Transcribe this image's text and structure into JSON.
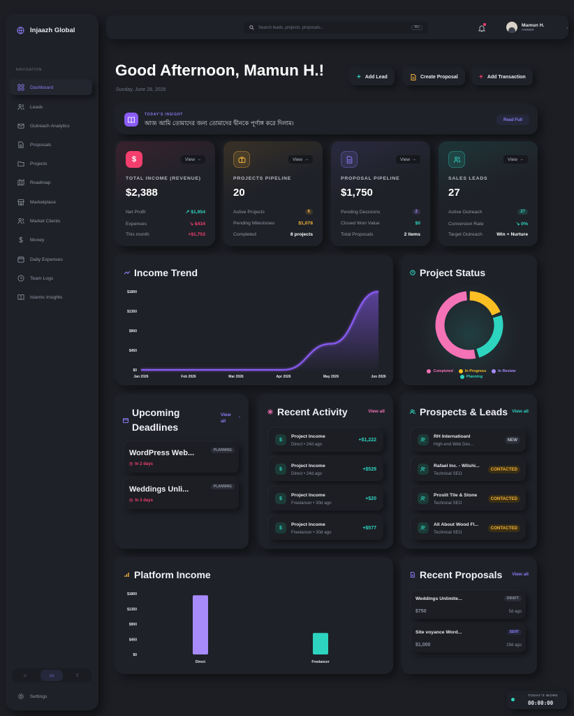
{
  "sidebar": {
    "brand": "Injaazh Global",
    "nav_label": "NAVIGATION",
    "items": [
      {
        "label": "Dashboard",
        "icon": "grid-icon"
      },
      {
        "label": "Leads",
        "icon": "users-icon"
      },
      {
        "label": "Outreach Analytics",
        "icon": "mail-icon"
      },
      {
        "label": "Proposals",
        "icon": "file-icon"
      },
      {
        "label": "Projects",
        "icon": "folder-icon"
      },
      {
        "label": "Roadmap",
        "icon": "map-icon"
      },
      {
        "label": "Marketplace",
        "icon": "store-icon"
      },
      {
        "label": "Market Clients",
        "icon": "users-icon"
      },
      {
        "label": "Money",
        "icon": "dollar-icon"
      },
      {
        "label": "Daily Expenses",
        "icon": "calendar-icon"
      },
      {
        "label": "Team Logs",
        "icon": "clock-icon"
      },
      {
        "label": "Islamic Insights",
        "icon": "book-icon"
      }
    ],
    "settings": "Settings"
  },
  "topbar": {
    "search_placeholder": "Search leads, projects, proposals...",
    "shortcut": "⌘K",
    "user_name": "Mamun H.",
    "user_role": "OWNER"
  },
  "header": {
    "greeting": "Good Afternoon, Mamun H.!",
    "date": "Sunday, June 28, 2026",
    "actions": [
      "Add Lead",
      "Create Proposal",
      "Add Transaction"
    ]
  },
  "insight": {
    "label": "TODAY'S INSIGHT",
    "text": "আজ আমি তোমাদের জন্য তোমাদের দ্বীনকে পূর্ণাঙ্গ করে দিলাম।",
    "button": "Read Full"
  },
  "stats": [
    {
      "label": "TOTAL INCOME (REVENUE)",
      "value": "$2,388",
      "view": "View",
      "accent": "#f43f6e",
      "rows": [
        {
          "k": "Net Profit",
          "v": "↗ $1,954",
          "c": "#2dd4bf"
        },
        {
          "k": "Expenses",
          "v": "↘ $434",
          "c": "#f43f6e"
        },
        {
          "k": "This month",
          "v": "+$1,753",
          "c": "#f43f6e"
        }
      ]
    },
    {
      "label": "PROJECTS PIPELINE",
      "value": "20",
      "view": "View",
      "accent": "#f5b43a",
      "rows": [
        {
          "k": "Active Projects",
          "v": "6",
          "c": "#f5b43a",
          "pill": true
        },
        {
          "k": "Pending Milestones",
          "v": "$1,078",
          "c": "#f5b43a"
        },
        {
          "k": "Completed",
          "v": "8 projects",
          "c": "#ffffff"
        }
      ]
    },
    {
      "label": "PROPOSAL PIPELINE",
      "value": "$1,750",
      "view": "View",
      "accent": "#8b7cf6",
      "rows": [
        {
          "k": "Pending Decisions",
          "v": "2",
          "c": "#a78bfa",
          "pill": true
        },
        {
          "k": "Closed Won Value",
          "v": "$0",
          "c": "#2dd4bf"
        },
        {
          "k": "Total Proposals",
          "v": "2 items",
          "c": "#ffffff"
        }
      ]
    },
    {
      "label": "SALES LEADS",
      "value": "27",
      "view": "View",
      "accent": "#2dd4bf",
      "rows": [
        {
          "k": "Active Outreach",
          "v": "27",
          "c": "#2dd4bf",
          "pill": true
        },
        {
          "k": "Conversion Rate",
          "v": "↘ 0%",
          "c": "#2dd4bf"
        },
        {
          "k": "Target Outreach",
          "v": "Win + Nurture",
          "c": "#ffffff"
        }
      ]
    }
  ],
  "income_trend": {
    "title": "Income Trend",
    "chart_data": {
      "type": "area",
      "categories": [
        "Jan 2026",
        "Feb 2026",
        "Mar 2026",
        "Apr 2026",
        "May 2026",
        "Jun 2026"
      ],
      "values": [
        0,
        0,
        0,
        0,
        600,
        1800
      ],
      "yticks": [
        "$1800",
        "$1350",
        "$900",
        "$450",
        "$0"
      ],
      "ylim": [
        0,
        1800
      ]
    }
  },
  "project_status": {
    "title": "Project Status",
    "chart_data": {
      "type": "pie",
      "labels": [
        "Completed",
        "In Progress",
        "In Review",
        "Planning"
      ],
      "values": [
        8,
        3,
        0,
        4
      ],
      "colors": [
        "#f472b6",
        "#fbbf24",
        "#a78bfa",
        "#2dd4bf"
      ]
    }
  },
  "deadlines": {
    "title": "Upcoming Deadlines",
    "view_all": "View all",
    "items": [
      {
        "name": "WordPress Web...",
        "badge": "PLANNING",
        "due": "In 2 days"
      },
      {
        "name": "Weddings Unli...",
        "badge": "PLANNING",
        "due": "In 3 days"
      }
    ]
  },
  "activity": {
    "title": "Recent Activity",
    "view_all": "View all",
    "items": [
      {
        "title": "Project Income",
        "sub": "Direct • 24d ago",
        "amount": "+$1,222"
      },
      {
        "title": "Project Income",
        "sub": "Direct • 24d ago",
        "amount": "+$529"
      },
      {
        "title": "Project Income",
        "sub": "Freelancer • 30d ago",
        "amount": "+$20"
      },
      {
        "title": "Project Income",
        "sub": "Freelancer • 30d ago",
        "amount": "+$577"
      }
    ]
  },
  "prospects": {
    "title": "Prospects & Leads",
    "view_all": "View all",
    "items": [
      {
        "name": "RH Internatioanl",
        "sub": "High-end Web Dev...",
        "badge": "NEW"
      },
      {
        "name": "Rafael Inc. - Wilshi...",
        "sub": "Technical SEO",
        "badge": "CONTACTED"
      },
      {
        "name": "Proslit Tile & Stone",
        "sub": "Technical SEO",
        "badge": "CONTACTED"
      },
      {
        "name": "All About Wood Fl...",
        "sub": "Technical SEO",
        "badge": "CONTACTED"
      }
    ]
  },
  "platform_income": {
    "title": "Platform Income",
    "chart_data": {
      "type": "bar",
      "categories": [
        "Direct",
        "Freelancer"
      ],
      "values": [
        1751,
        637
      ],
      "yticks": [
        "$1800",
        "$1350",
        "$900",
        "$450",
        "$0"
      ],
      "ylim": [
        0,
        1800
      ],
      "colors": [
        "#a78bfa",
        "#2dd4bf"
      ]
    }
  },
  "proposals": {
    "title": "Recent Proposals",
    "view_all": "View all",
    "items": [
      {
        "name": "Weddings Unlimite...",
        "badge": "DRAFT",
        "amount": "$750",
        "ago": "5d ago"
      },
      {
        "name": "Site voyance Word...",
        "badge": "SENT",
        "amount": "$1,000",
        "ago": "29d ago"
      }
    ]
  },
  "work_timer": {
    "label": "TODAY'S WORK",
    "time": "00:00:00"
  }
}
